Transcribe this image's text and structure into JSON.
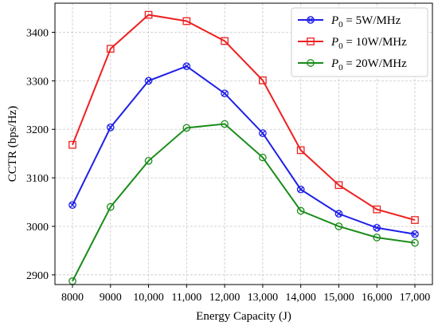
{
  "chart_data": {
    "type": "line",
    "title": "",
    "xlabel": "Energy Capacity (J)",
    "ylabel": "CCTR (bps/Hz)",
    "x": [
      8000,
      9000,
      10000,
      11000,
      12000,
      13000,
      14000,
      15000,
      16000,
      17000
    ],
    "x_tick_labels": [
      "8000",
      "9000",
      "10,000",
      "11,000",
      "12,000",
      "13,000",
      "14,000",
      "15,000",
      "16,000",
      "17,000"
    ],
    "ylim": [
      2880,
      3460
    ],
    "y_ticks": [
      2900,
      3000,
      3100,
      3200,
      3300,
      3400
    ],
    "y_tick_labels": [
      "2900",
      "3000",
      "3100",
      "3200",
      "3300",
      "3400"
    ],
    "grid": true,
    "legend_position": "top-right",
    "series": [
      {
        "name": "P0 = 5W/MHz",
        "legend": {
          "symbol": "P",
          "subscript": "0",
          "rest": " = 5W/MHz"
        },
        "color": "#1f1fe8",
        "marker": "x-circle",
        "values": [
          3044,
          3204,
          3300,
          3330,
          3274,
          3192,
          3076,
          3026,
          2997,
          2984
        ]
      },
      {
        "name": "P0 = 10W/MHz",
        "legend": {
          "symbol": "P",
          "subscript": "0",
          "rest": " = 10W/MHz"
        },
        "color": "#ee2020",
        "marker": "square",
        "values": [
          3168,
          3366,
          3436,
          3423,
          3382,
          3301,
          3157,
          3085,
          3035,
          3013
        ]
      },
      {
        "name": "P0 = 20W/MHz",
        "legend": {
          "symbol": "P",
          "subscript": "0",
          "rest": " = 20W/MHz"
        },
        "color": "#1a8c1a",
        "marker": "circle",
        "values": [
          2887,
          3040,
          3135,
          3203,
          3211,
          3142,
          3032,
          3000,
          2977,
          2966
        ]
      }
    ]
  }
}
